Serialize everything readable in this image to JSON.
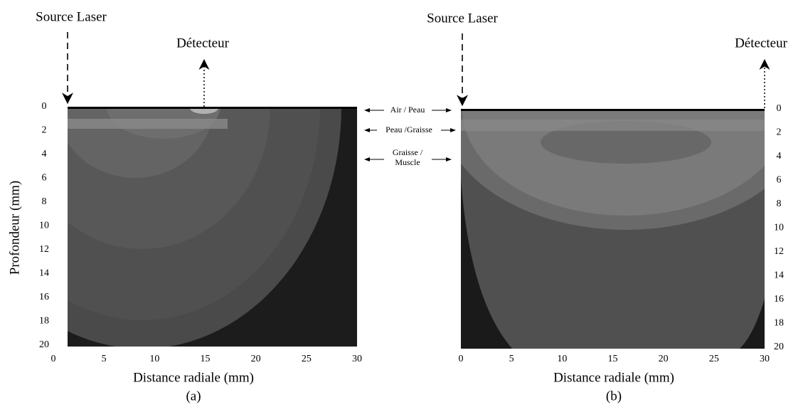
{
  "chart_data": [
    {
      "type": "heatmap",
      "xlabel": "Distance radiale (mm)",
      "ylabel": "Profondeur (mm)",
      "caption": "(a)",
      "source_label": "Source Laser",
      "detector_label": "Détecteur",
      "xlim": [
        0,
        30
      ],
      "ylim": [
        0,
        20
      ],
      "xticks": [
        0,
        5,
        10,
        15,
        20,
        25,
        30
      ],
      "yticks": [
        0,
        2,
        4,
        6,
        8,
        10,
        12,
        14,
        16,
        18,
        20
      ],
      "ytick_side": "left"
    },
    {
      "type": "heatmap",
      "xlabel": "Distance radiale (mm)",
      "caption": "(b)",
      "source_label": "Source Laser",
      "detector_label": "Détecteur",
      "xlim": [
        0,
        30
      ],
      "ylim": [
        0,
        20
      ],
      "xticks": [
        0,
        5,
        10,
        15,
        20,
        25,
        30
      ],
      "yticks": [
        0,
        2,
        4,
        6,
        8,
        10,
        12,
        14,
        16,
        18,
        20
      ],
      "ytick_side": "right"
    }
  ],
  "layer_labels": {
    "air_skin": "Air / Peau",
    "skin_fat": "Peau /Graisse",
    "fat_muscle": [
      "Graisse /",
      "Muscle"
    ]
  }
}
